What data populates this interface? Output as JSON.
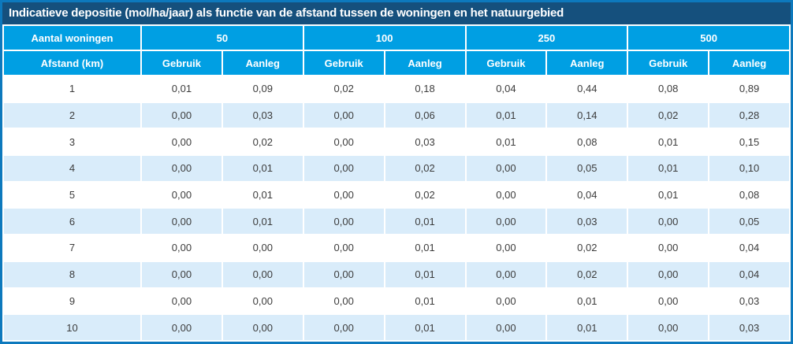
{
  "chart_data": {
    "type": "table",
    "title": "Indicatieve depositie (mol/ha/jaar) als functie van de afstand tussen de woningen en het natuurgebied",
    "corner_top": "Aantal woningen",
    "corner_bottom": "Afstand (km)",
    "groups": [
      {
        "label": "50",
        "sub": [
          "Gebruik",
          "Aanleg"
        ]
      },
      {
        "label": "100",
        "sub": [
          "Gebruik",
          "Aanleg"
        ]
      },
      {
        "label": "250",
        "sub": [
          "Gebruik",
          "Aanleg"
        ]
      },
      {
        "label": "500",
        "sub": [
          "Gebruik",
          "Aanleg"
        ]
      }
    ],
    "rows": [
      [
        "1",
        "0,01",
        "0,09",
        "0,02",
        "0,18",
        "0,04",
        "0,44",
        "0,08",
        "0,89"
      ],
      [
        "2",
        "0,00",
        "0,03",
        "0,00",
        "0,06",
        "0,01",
        "0,14",
        "0,02",
        "0,28"
      ],
      [
        "3",
        "0,00",
        "0,02",
        "0,00",
        "0,03",
        "0,01",
        "0,08",
        "0,01",
        "0,15"
      ],
      [
        "4",
        "0,00",
        "0,01",
        "0,00",
        "0,02",
        "0,00",
        "0,05",
        "0,01",
        "0,10"
      ],
      [
        "5",
        "0,00",
        "0,01",
        "0,00",
        "0,02",
        "0,00",
        "0,04",
        "0,01",
        "0,08"
      ],
      [
        "6",
        "0,00",
        "0,01",
        "0,00",
        "0,01",
        "0,00",
        "0,03",
        "0,00",
        "0,05"
      ],
      [
        "7",
        "0,00",
        "0,00",
        "0,00",
        "0,01",
        "0,00",
        "0,02",
        "0,00",
        "0,04"
      ],
      [
        "8",
        "0,00",
        "0,00",
        "0,00",
        "0,01",
        "0,00",
        "0,02",
        "0,00",
        "0,04"
      ],
      [
        "9",
        "0,00",
        "0,00",
        "0,00",
        "0,01",
        "0,00",
        "0,01",
        "0,00",
        "0,03"
      ],
      [
        "10",
        "0,00",
        "0,00",
        "0,00",
        "0,01",
        "0,00",
        "0,01",
        "0,00",
        "0,03"
      ]
    ],
    "colors": {
      "border": "#0d79bd",
      "title_bg": "#15507d",
      "header_bg": "#009fe3",
      "stripe_bg": "#d9ecfa",
      "text": "#3c3c3c"
    }
  }
}
